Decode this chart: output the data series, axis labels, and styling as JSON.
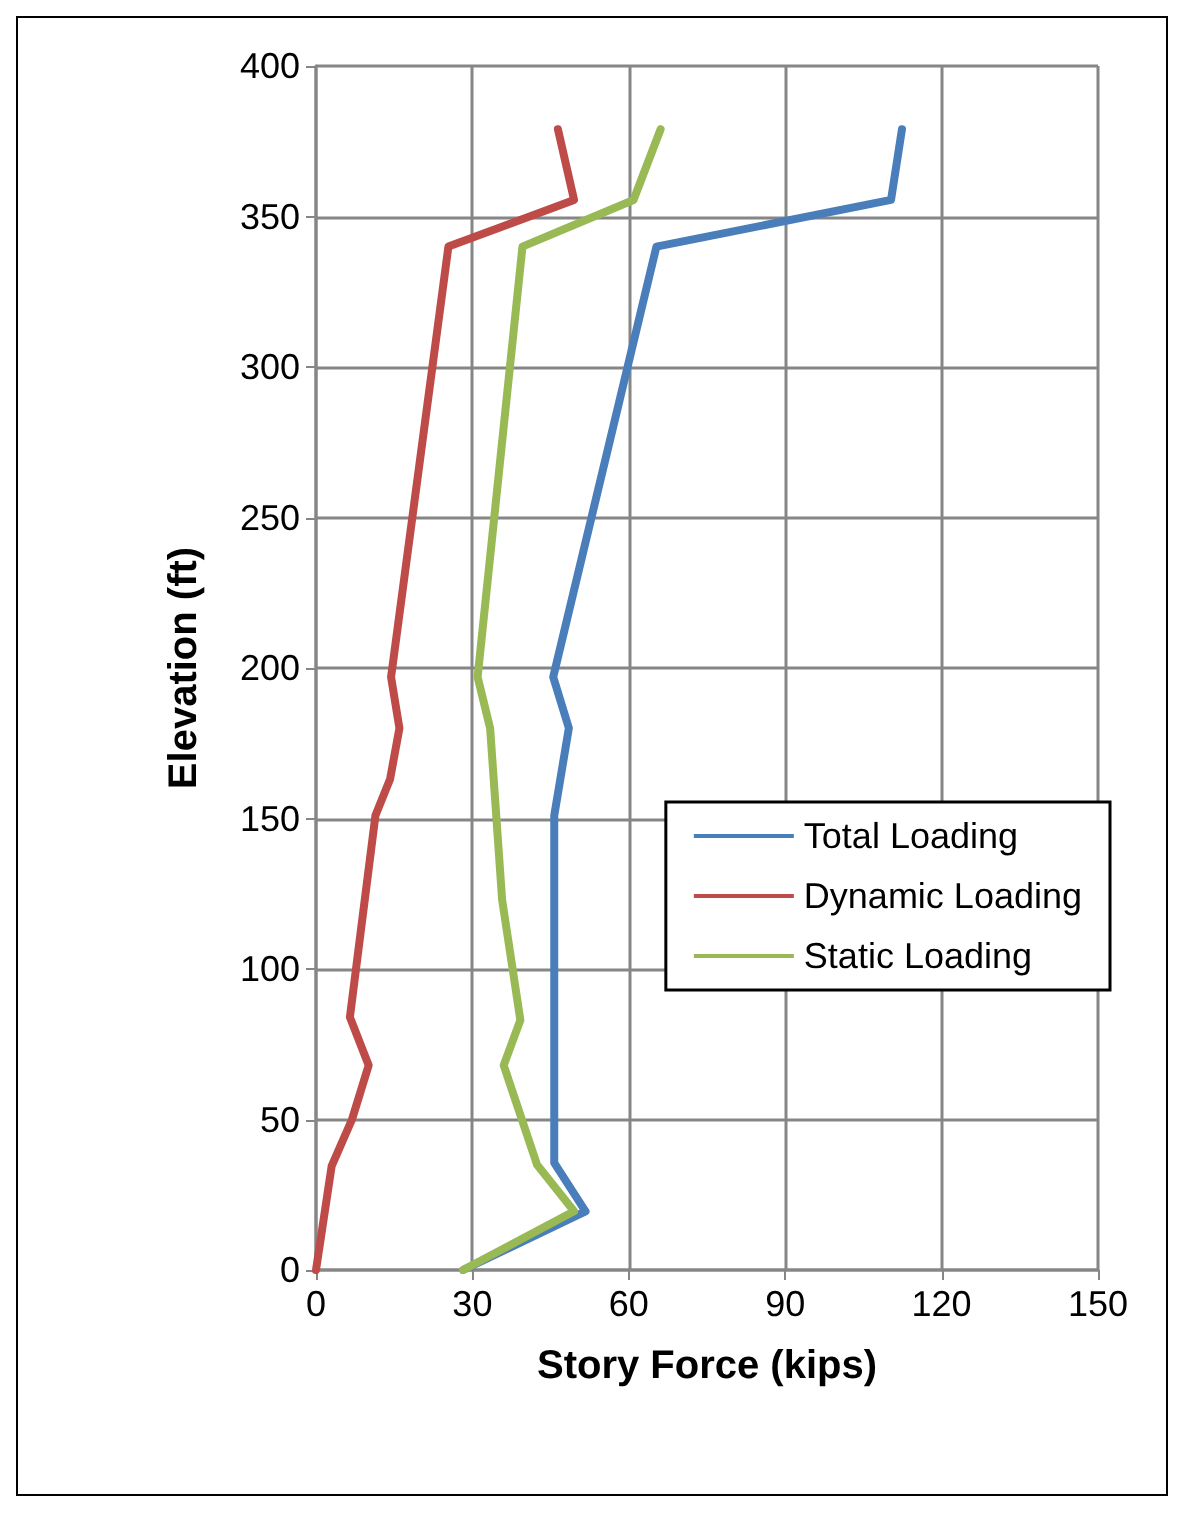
{
  "chart_data": {
    "type": "line",
    "xlabel": "Story Force (kips)",
    "ylabel": "Elevation (ft)",
    "xlim": [
      0,
      150
    ],
    "xticks": [
      0,
      30,
      60,
      90,
      120,
      150
    ],
    "ylim": [
      0,
      400
    ],
    "yticks": [
      0,
      50,
      100,
      150,
      200,
      250,
      300,
      350,
      400
    ],
    "grid": true,
    "legend": "right",
    "marker": "none",
    "line_style": "solid",
    "series": [
      {
        "name": "Total Loading",
        "color": "#4a7ebb",
        "x": [
          112.4,
          110.3,
          65.3,
          45.5,
          48.5,
          45.7,
          45.7,
          51.7,
          28.2
        ],
        "values": [
          379,
          355.5,
          340,
          197,
          180,
          151,
          35.6,
          19.5,
          0
        ]
      },
      {
        "name": "Dynamic Loading",
        "color": "#be4b48",
        "x": [
          46.4,
          49.5,
          25.4,
          14.4,
          16,
          14.2,
          11.4,
          6.5,
          10.1,
          6.9,
          3,
          0
        ],
        "values": [
          379,
          355.5,
          340,
          197,
          180,
          163,
          151,
          84,
          68,
          50,
          34.5,
          0
        ]
      },
      {
        "name": "Static Loading",
        "color": "#98b954",
        "x": [
          66.1,
          60.9,
          39.6,
          31,
          33.4,
          35.7,
          39.2,
          36,
          42.4,
          49.5,
          28.2
        ],
        "values": [
          379,
          355.5,
          340,
          197,
          180,
          123,
          83,
          68,
          35,
          19.5,
          0
        ]
      }
    ]
  }
}
